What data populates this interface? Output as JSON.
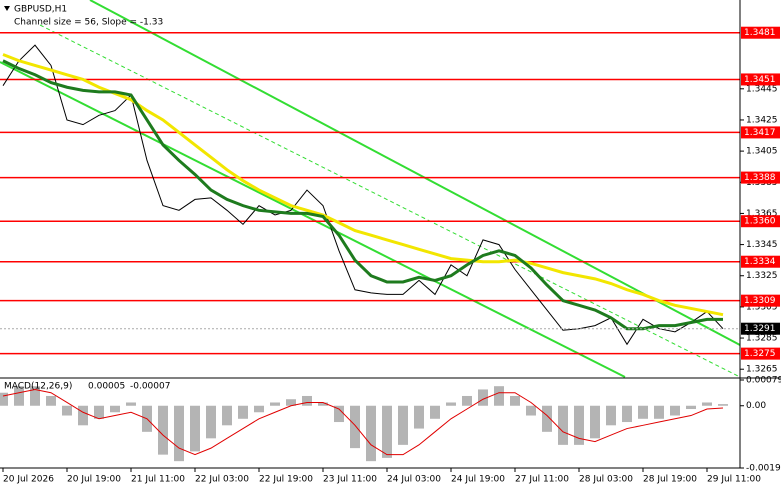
{
  "chart_data": [
    {
      "type": "line",
      "title": "GBPUSD,H1",
      "annotation": "Channel size = 56, Slope = -1.33",
      "categories": [
        "20 Jul 2026",
        null,
        null,
        null,
        "20 Jul 19:00",
        null,
        null,
        null,
        "21 Jul 11:00",
        null,
        null,
        null,
        "22 Jul 03:00",
        null,
        null,
        null,
        "22 Jul 19:00",
        null,
        null,
        null,
        "23 Jul 11:00",
        null,
        null,
        null,
        "24 Jul 03:00",
        null,
        null,
        null,
        "24 Jul 19:00",
        null,
        null,
        null,
        "27 Jul 11:00",
        null,
        null,
        null,
        "28 Jul 03:00",
        null,
        null,
        null,
        "28 Jul 19:00",
        null,
        null,
        null,
        "29 Jul 11:00",
        null
      ],
      "series": [
        {
          "color": "#000000",
          "values": [
            1.3447,
            1.3463,
            1.3473,
            1.346,
            1.3425,
            1.3422,
            1.3428,
            1.3431,
            1.3441,
            1.3399,
            1.337,
            1.3367,
            1.3374,
            1.3375,
            1.3367,
            1.3358,
            1.337,
            1.3364,
            1.3367,
            1.338,
            1.337,
            1.3341,
            1.3316,
            1.3314,
            1.3313,
            1.3313,
            1.3322,
            1.3313,
            1.3332,
            1.3325,
            1.3348,
            1.3345,
            1.3329,
            1.3316,
            1.3303,
            1.329,
            1.3291,
            1.3293,
            1.3298,
            1.3281,
            1.3297,
            1.3291,
            1.3289,
            1.3295,
            1.3302,
            1.3291
          ]
        },
        {
          "color": "#f2e600",
          "values": [
            1.3467,
            1.3463,
            1.346,
            1.3457,
            1.3454,
            1.3451,
            1.3446,
            1.3442,
            1.3438,
            1.3431,
            1.3425,
            1.3417,
            1.3409,
            1.3401,
            1.3393,
            1.3386,
            1.338,
            1.3375,
            1.337,
            1.3367,
            1.3364,
            1.3359,
            1.3354,
            1.3351,
            1.3348,
            1.3345,
            1.3342,
            1.3339,
            1.3336,
            1.3335,
            1.3334,
            1.3334,
            1.3335,
            1.3333,
            1.333,
            1.3327,
            1.3325,
            1.3323,
            1.332,
            1.3316,
            1.3313,
            1.3309,
            1.3306,
            1.3304,
            1.3302,
            1.33
          ]
        },
        {
          "color": "#1e7b1e",
          "values": [
            1.3463,
            1.3458,
            1.3454,
            1.3449,
            1.3446,
            1.3444,
            1.3443,
            1.3443,
            1.3441,
            1.3425,
            1.3409,
            1.3399,
            1.339,
            1.338,
            1.3374,
            1.337,
            1.3367,
            1.3366,
            1.3365,
            1.3365,
            1.3363,
            1.3351,
            1.3335,
            1.3325,
            1.3321,
            1.3321,
            1.3324,
            1.3322,
            1.3325,
            1.3332,
            1.3338,
            1.3341,
            1.3338,
            1.333,
            1.3319,
            1.3309,
            1.3306,
            1.3303,
            1.3298,
            1.3291,
            1.3291,
            1.3293,
            1.3293,
            1.3295,
            1.3297,
            1.3297
          ]
        }
      ],
      "levels": [
        1.3481,
        1.3451,
        1.3417,
        1.3388,
        {
          "value": 1.336,
          "label": "1.3360"
        },
        1.3334,
        1.3309,
        1.3275
      ],
      "level_color": "#ff0000",
      "current_price": 1.3291,
      "ylim": [
        1.326,
        1.3502
      ],
      "yticks": [
        1.3445,
        1.3425,
        1.3405,
        1.3385,
        1.3365,
        1.3345,
        1.3325,
        1.3305,
        1.3285,
        1.3265
      ]
    },
    {
      "type": "macd",
      "title": "MACD(12,26,9)",
      "main_value": 5e-05,
      "signal_value": -7e-05,
      "series": [
        {
          "color": "#b4b4b4",
          "values": [
            0.0004,
            0.0006,
            0.0006,
            0.0003,
            -0.0003,
            -0.0006,
            -0.0004,
            -0.0002,
            0.0001,
            -0.0008,
            -0.0015,
            -0.0017,
            -0.0014,
            -0.001,
            -0.0006,
            -0.0004,
            -0.0002,
            0.0001,
            0.0002,
            0.0003,
            0.0001,
            -0.0005,
            -0.0013,
            -0.0017,
            -0.0016,
            -0.0012,
            -0.0007,
            -0.0004,
            0.0001,
            0.0003,
            0.0005,
            0.0006,
            0.0003,
            -0.0003,
            -0.0008,
            -0.0012,
            -0.0012,
            -0.001,
            -0.0006,
            -0.0005,
            -0.0004,
            -0.0004,
            -0.0003,
            -0.0001,
            0.0001,
            5e-05
          ]
        },
        {
          "color": "#e00000",
          "values": [
            0.0003,
            0.0004,
            0.0005,
            0.0004,
            0.0001,
            -0.0002,
            -0.0004,
            -0.0003,
            -0.0002,
            -0.0004,
            -0.0009,
            -0.0013,
            -0.0015,
            -0.0013,
            -0.001,
            -0.0007,
            -0.0004,
            -0.0002,
            0,
            0.0001,
            0.0001,
            -0.0001,
            -0.0006,
            -0.0012,
            -0.0015,
            -0.0015,
            -0.0012,
            -0.0008,
            -0.0004,
            -0.0001,
            0.0002,
            0.0004,
            0.0004,
            0.0001,
            -0.0003,
            -0.0008,
            -0.001,
            -0.0011,
            -0.0009,
            -0.0007,
            -0.0006,
            -0.0005,
            -0.0004,
            -0.0003,
            -0.0001,
            -7e-05
          ]
        }
      ],
      "ylim": [
        -0.00191,
        0.00079
      ],
      "yticks": [
        0.00079,
        {
          "value": 0,
          "label": "0.00"
        },
        -0.00191
      ]
    }
  ]
}
